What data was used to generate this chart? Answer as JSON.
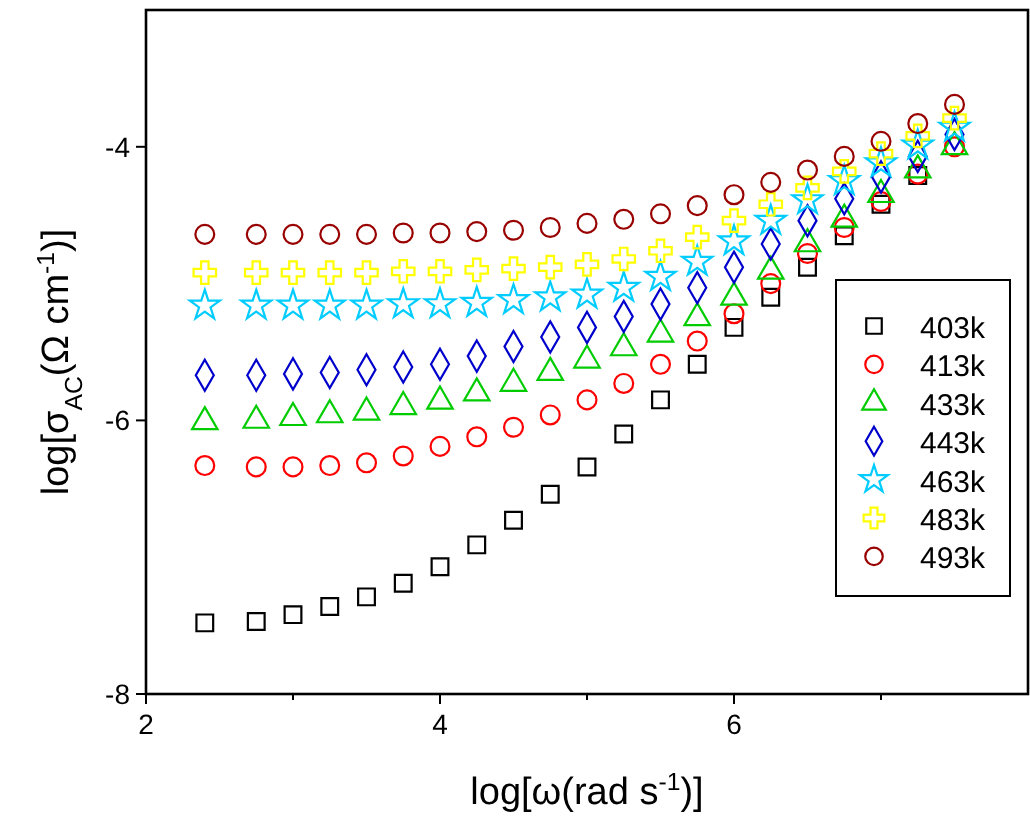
{
  "chart_data": {
    "type": "scatter",
    "xlabel": "log[ω(rad s$^{-1}$)]",
    "ylabel": "log[σ$_{AC}$(Ω cm$^{-1}$)]",
    "x": [
      2.4,
      2.75,
      3,
      3.25,
      3.5,
      3.75,
      4,
      4.25,
      4.5,
      4.75,
      5,
      5.25,
      5.5,
      5.75,
      6,
      6.25,
      6.5,
      6.75,
      7,
      7.25,
      7.5
    ],
    "xlim": [
      2,
      8
    ],
    "xticks": [
      2,
      {
        "value": 3,
        "label": null
      },
      4,
      {
        "value": 5,
        "label": null
      },
      6,
      {
        "value": 7,
        "label": null
      }
    ],
    "ylim": [
      -8,
      -3
    ],
    "yticks": [
      -8,
      -6,
      -4
    ],
    "grid": false,
    "legend": "right",
    "series": [
      {
        "name": "403k",
        "color": "#000000",
        "marker": "square",
        "values": [
          -7.48,
          -7.47,
          -7.42,
          -7.36,
          -7.29,
          -7.19,
          -7.07,
          -6.91,
          -6.73,
          -6.54,
          -6.34,
          -6.1,
          -5.85,
          -5.59,
          -5.32,
          -5.1,
          -4.88,
          -4.65,
          -4.42,
          -4.21,
          null
        ]
      },
      {
        "name": "413k",
        "color": "#ff0000",
        "marker": "circle",
        "values": [
          -6.33,
          -6.34,
          -6.34,
          -6.33,
          -6.31,
          -6.26,
          -6.19,
          -6.12,
          -6.05,
          -5.96,
          -5.85,
          -5.73,
          -5.59,
          -5.42,
          -5.22,
          -5.0,
          -4.78,
          -4.59,
          -4.4,
          -4.2,
          -4.0
        ]
      },
      {
        "name": "433k",
        "color": "#00cc00",
        "marker": "triangle",
        "values": [
          -6.01,
          -6,
          -5.98,
          -5.96,
          -5.94,
          -5.9,
          -5.86,
          -5.8,
          -5.73,
          -5.65,
          -5.56,
          -5.47,
          -5.37,
          -5.25,
          -5.1,
          -4.91,
          -4.71,
          -4.53,
          -4.35,
          -4.17,
          -4.0
        ]
      },
      {
        "name": "443k",
        "color": "#0000cc",
        "marker": "diamond",
        "values": [
          -5.67,
          -5.67,
          -5.66,
          -5.65,
          -5.63,
          -5.61,
          -5.59,
          -5.53,
          -5.46,
          -5.39,
          -5.32,
          -5.24,
          -5.15,
          -5.03,
          -4.88,
          -4.71,
          -4.54,
          -4.38,
          -4.22,
          -4.07,
          -3.91
        ]
      },
      {
        "name": "463k",
        "color": "#00ccff",
        "marker": "star",
        "values": [
          -5.16,
          -5.16,
          -5.16,
          -5.16,
          -5.16,
          -5.15,
          -5.15,
          -5.14,
          -5.12,
          -5.1,
          -5.08,
          -5.03,
          -4.95,
          -4.84,
          -4.69,
          -4.54,
          -4.39,
          -4.25,
          -4.12,
          -3.99,
          -3.86
        ]
      },
      {
        "name": "483k",
        "color": "#ffff00",
        "marker": "cross",
        "values": [
          -4.92,
          -4.92,
          -4.92,
          -4.92,
          -4.92,
          -4.91,
          -4.91,
          -4.9,
          -4.89,
          -4.88,
          -4.86,
          -4.82,
          -4.76,
          -4.66,
          -4.54,
          -4.42,
          -4.3,
          -4.18,
          -4.05,
          -3.92,
          -3.79
        ]
      },
      {
        "name": "493k",
        "color": "#990000",
        "marker": "circle",
        "values": [
          -4.64,
          -4.64,
          -4.64,
          -4.64,
          -4.64,
          -4.63,
          -4.63,
          -4.62,
          -4.61,
          -4.59,
          -4.56,
          -4.53,
          -4.49,
          -4.43,
          -4.35,
          -4.26,
          -4.17,
          -4.07,
          -3.96,
          -3.83,
          -3.69
        ]
      }
    ]
  }
}
